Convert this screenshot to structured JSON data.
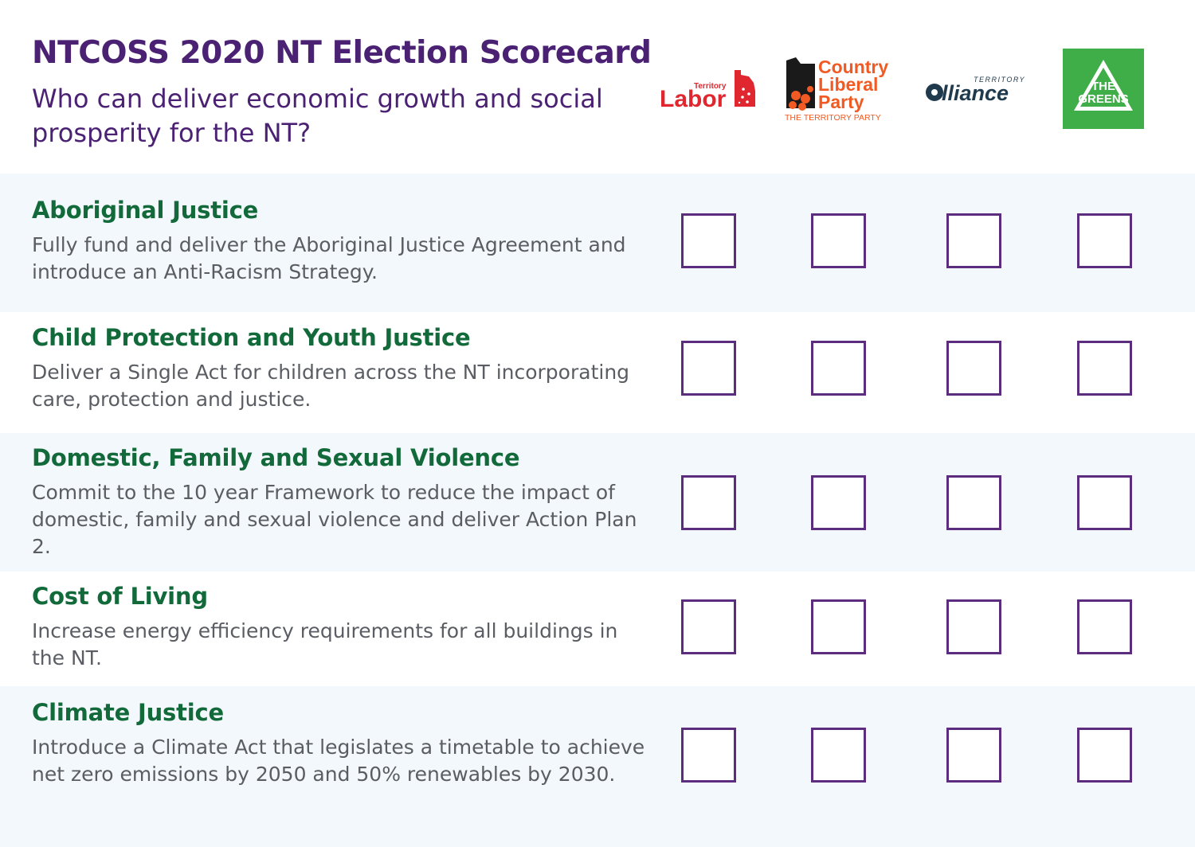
{
  "header": {
    "title": "NTCOSS 2020 NT Election Scorecard",
    "subtitle": "Who can deliver economic growth and social prosperity for the NT?"
  },
  "parties": [
    {
      "id": "labor",
      "logo_lines": [
        "Territory",
        "Labor"
      ],
      "color": "#e0262e"
    },
    {
      "id": "clp",
      "logo_lines": [
        "Country",
        "Liberal",
        "Party",
        "THE TERRITORY PARTY"
      ],
      "color": "#f15a22"
    },
    {
      "id": "alliance",
      "logo_lines": [
        "TERRITORY",
        "lliance"
      ],
      "color": "#1f3a4d"
    },
    {
      "id": "greens",
      "logo_lines": [
        "THE",
        "GREENS"
      ],
      "color": "#3fad48"
    }
  ],
  "rows": [
    {
      "title": "Aboriginal Justice",
      "description": "Fully fund and deliver the Aboriginal Justice Agreement and introduce an Anti-Racism Strategy."
    },
    {
      "title": "Child Protection and Youth Justice",
      "description": "Deliver a Single Act for children across the NT incorporating care, protection and justice."
    },
    {
      "title": "Domestic, Family and Sexual Violence",
      "description": "Commit to the 10 year Framework to reduce the impact of domestic, family and sexual violence and deliver Action Plan 2."
    },
    {
      "title": "Cost of Living",
      "description": "Increase energy efficiency requirements for all buildings in the NT."
    },
    {
      "title": "Climate Justice",
      "description": "Introduce a Climate Act that legislates a timetable to achieve net zero emissions by 2050 and 50% renewables by 2030."
    }
  ],
  "colors": {
    "title": "#4b2173",
    "row_title": "#12693a",
    "description": "#5a5d63",
    "checkbox_border": "#5c2d7f",
    "row_alt_bg": "#f3f8fc"
  }
}
